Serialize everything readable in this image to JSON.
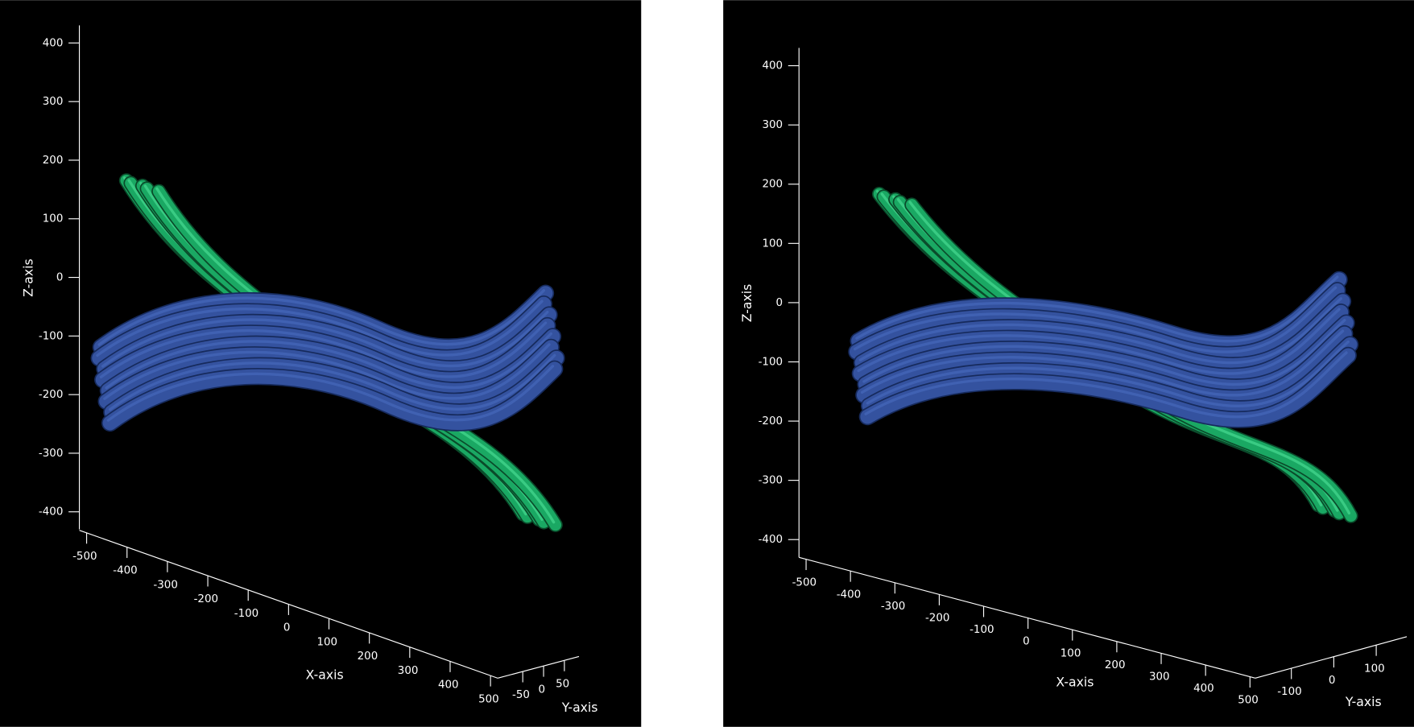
{
  "chart_data": [
    {
      "type": "3d-tube",
      "xlabel": "X-axis",
      "ylabel": "Y-axis",
      "zlabel": "Z-axis",
      "xlim": [
        -518,
        518
      ],
      "xticks": [
        -500,
        -400,
        -300,
        -200,
        -100,
        0,
        100,
        200,
        300,
        400,
        500
      ],
      "ylim": [
        -110,
        85
      ],
      "yticks": [
        -50,
        0,
        50
      ],
      "zlim": [
        -430,
        430
      ],
      "zticks": [
        -400,
        -300,
        -200,
        -100,
        0,
        100,
        200,
        300,
        400
      ]
    },
    {
      "type": "3d-tube",
      "xlabel": "X-axis",
      "ylabel": "Y-axis",
      "zlabel": "Z-axis",
      "xlim": [
        -516,
        512
      ],
      "xticks": [
        -500,
        -400,
        -300,
        -200,
        -100,
        0,
        100,
        200,
        300,
        400,
        500
      ],
      "ylim": [
        -185,
        172
      ],
      "yticks": [
        -100,
        0,
        100
      ],
      "zlim": [
        -430,
        430
      ],
      "zticks": [
        -400,
        -300,
        -200,
        -100,
        0,
        100,
        200,
        300,
        400
      ]
    }
  ]
}
